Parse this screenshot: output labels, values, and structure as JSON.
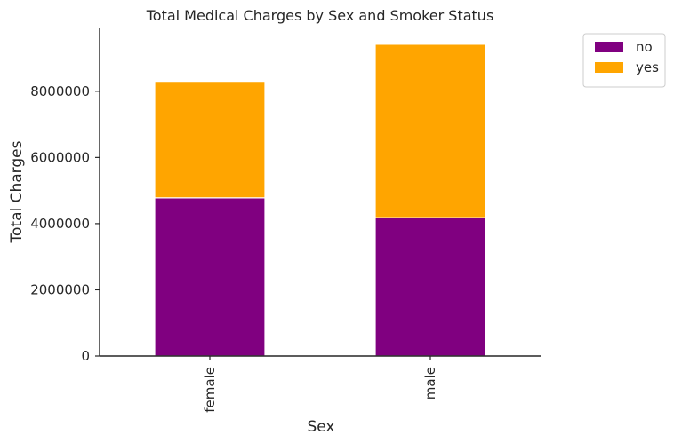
{
  "chart_data": {
    "type": "bar",
    "stacked": true,
    "title": "Total Medical Charges by Sex and Smoker Status",
    "xlabel": "Sex",
    "ylabel": "Total Charges",
    "categories": [
      "female",
      "male"
    ],
    "series": [
      {
        "name": "no",
        "color": "#800080",
        "values": [
          4780000,
          4180000
        ]
      },
      {
        "name": "yes",
        "color": "#FFA500",
        "values": [
          3520000,
          5240000
        ]
      }
    ],
    "ylim": [
      0,
      9900000
    ],
    "yticks": [
      0,
      2000000,
      4000000,
      6000000,
      8000000
    ],
    "ytick_labels": [
      "0",
      "2000000",
      "4000000",
      "6000000",
      "8000000"
    ],
    "grid": false,
    "legend_position": "outside-top-right"
  }
}
